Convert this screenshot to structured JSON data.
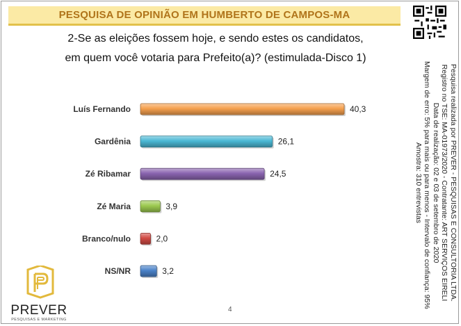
{
  "header": {
    "title": "PESQUISA DE OPINIÃO EM HUMBERTO DE CAMPOS-MA"
  },
  "question": {
    "line1": "2-Se as eleições fossem hoje, e sendo estes os candidatos,",
    "line2": "em quem você votaria para Prefeito(a)? (estimulada-Disco 1)"
  },
  "side_info": {
    "lines": [
      "Pesquisa realizada por PREVER - PESQUISAS E CONSULTORIA LTDA.",
      "Registro no TSE: MA-01973/2020 - Contratante: ART SERVIÇOS EIRELI",
      "Data de realização: 02 e 03 de setembro de 2020",
      "Margem de erro: 5% para mais ou para menos - Intervalo de confiança: 95%",
      "Amostra: 310 entrevistas"
    ]
  },
  "page_number": "4",
  "logo": {
    "name": "PREVER",
    "tagline": "PESQUISAS E MARKETING"
  },
  "chart_data": {
    "type": "bar",
    "orientation": "horizontal",
    "categories": [
      "Luís Fernando",
      "Gardênia",
      "Zé Ribamar",
      "Zé Maria",
      "Branco/nulo",
      "NS/NR"
    ],
    "values": [
      40.3,
      26.1,
      24.5,
      3.9,
      2.0,
      3.2
    ],
    "value_labels": [
      "40,3",
      "26,1",
      "24,5",
      "3,9",
      "2,0",
      "3,2"
    ],
    "colors": [
      "#f5a04e",
      "#4bb8d4",
      "#8a64b0",
      "#9cc94f",
      "#d14a44",
      "#4a82c8"
    ],
    "xlim": [
      0,
      40.3
    ],
    "grid": false,
    "legend": "none"
  }
}
